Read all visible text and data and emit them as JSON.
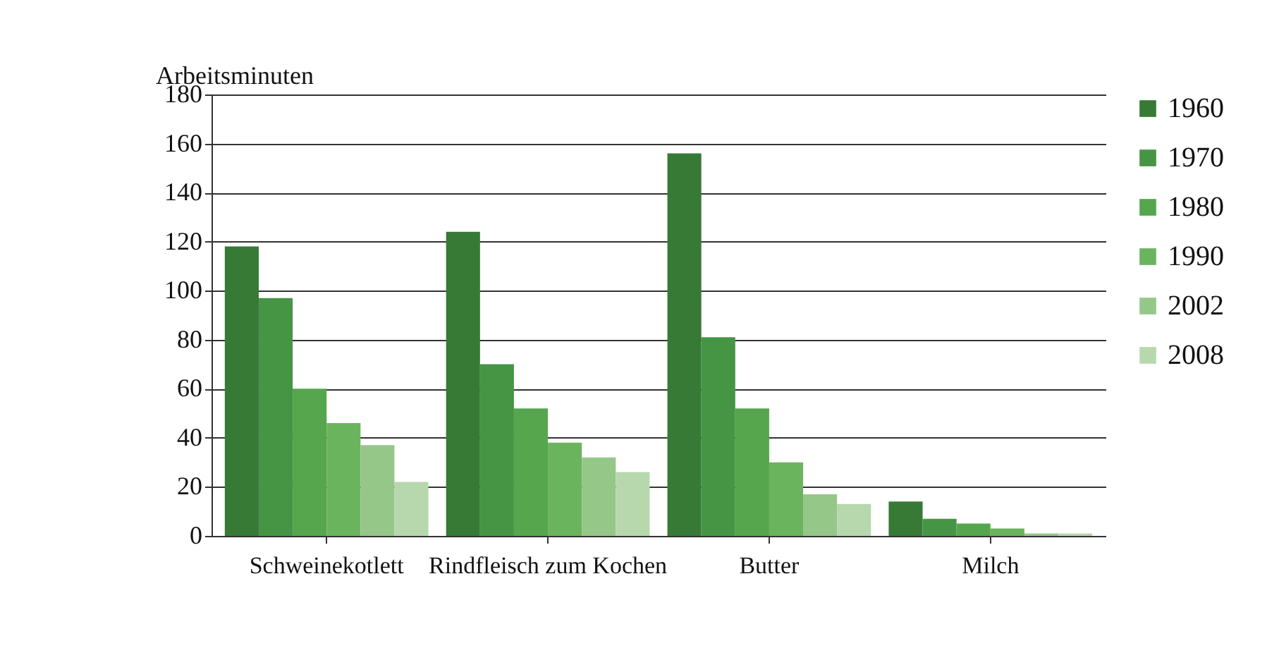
{
  "chart_data": {
    "type": "bar",
    "ylabel": "Arbeitsminuten",
    "categories": [
      "Schweinekotlett",
      "Rindfleisch zum Kochen",
      "Butter",
      "Milch"
    ],
    "series": [
      {
        "name": "1960",
        "color": "#367a36",
        "values": [
          118,
          124,
          156,
          14
        ]
      },
      {
        "name": "1970",
        "color": "#469544",
        "values": [
          97,
          70,
          81,
          7
        ]
      },
      {
        "name": "1980",
        "color": "#55a64d",
        "values": [
          60,
          52,
          52,
          5
        ]
      },
      {
        "name": "1990",
        "color": "#6bb45e",
        "values": [
          46,
          38,
          30,
          3
        ]
      },
      {
        "name": "2002",
        "color": "#95c789",
        "values": [
          37,
          32,
          17,
          1
        ]
      },
      {
        "name": "2008",
        "color": "#b7d8ad",
        "values": [
          22,
          26,
          13,
          1
        ]
      }
    ],
    "ylim": [
      0,
      180
    ],
    "yticks": [
      0,
      20,
      40,
      60,
      80,
      100,
      120,
      140,
      160,
      180
    ],
    "grid": "y",
    "legend": "right"
  }
}
